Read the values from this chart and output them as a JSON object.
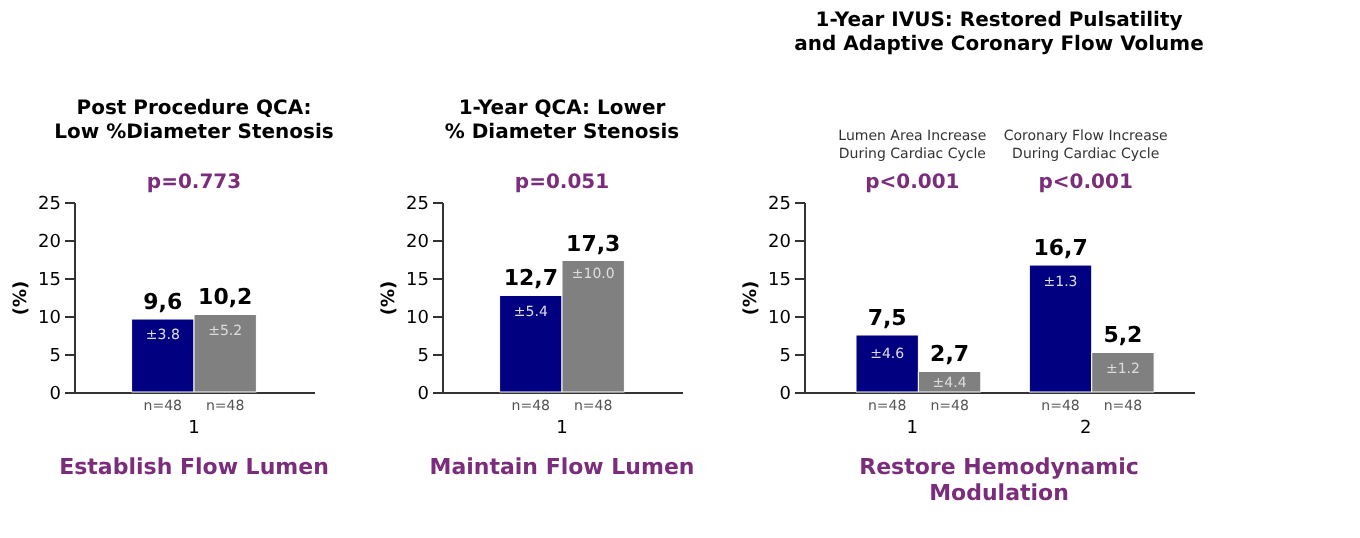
{
  "chart_data": [
    {
      "type": "bar",
      "title": "Post Procedure QCA: Low %Diameter Stenosis",
      "ylabel": "(%)",
      "categories": [
        "1"
      ],
      "ylim": [
        0,
        25
      ],
      "yticks": [
        0,
        5,
        10,
        15,
        20,
        25
      ],
      "grid": false,
      "legend": false,
      "series": [
        {
          "color": "#000080",
          "values": [
            9.6
          ],
          "value_labels": [
            "9,6"
          ]
        },
        {
          "color": "#808080",
          "values": [
            10.2
          ],
          "value_labels": [
            "10,2"
          ]
        }
      ],
      "annotations": [
        "Establish Flow Lumen",
        "p=0.773",
        {
          "text": "±3.8",
          "x": "1",
          "y": 7.5
        },
        {
          "text": "±5.2",
          "x": "1",
          "y": 8
        },
        {
          "text": "n=48",
          "x": "1",
          "y": 0
        },
        {
          "text": "n=48",
          "x": "1",
          "y": 0
        }
      ]
    },
    {
      "type": "bar",
      "title": "1-Year QCA: Lower % Diameter Stenosis",
      "ylabel": "(%)",
      "categories": [
        "1"
      ],
      "ylim": [
        0,
        25
      ],
      "yticks": [
        0,
        5,
        10,
        15,
        20,
        25
      ],
      "grid": false,
      "legend": false,
      "series": [
        {
          "color": "#000080",
          "values": [
            12.7
          ],
          "value_labels": [
            "12,7"
          ]
        },
        {
          "color": "#808080",
          "values": [
            17.3
          ],
          "value_labels": [
            "17,3"
          ]
        }
      ],
      "annotations": [
        "Maintain Flow Lumen",
        "p=0.051",
        {
          "text": "±5.4",
          "x": "1",
          "y": 10.5
        },
        {
          "text": "±10.0",
          "x": "1",
          "y": 15.5
        },
        {
          "text": "n=48",
          "x": "1",
          "y": 0
        },
        {
          "text": "n=48",
          "x": "1",
          "y": 0
        }
      ]
    },
    {
      "type": "bar",
      "title": "1-Year IVUS: Restored Pulsatility and Adaptive Coronary Flow Volume",
      "ylabel": "(%)",
      "categories": [
        "1",
        "2"
      ],
      "ylim": [
        0,
        25
      ],
      "yticks": [
        0,
        5,
        10,
        15,
        20,
        25
      ],
      "grid": false,
      "legend": false,
      "series": [
        {
          "color": "#000080",
          "values": [
            7.5,
            16.7
          ],
          "value_labels": [
            "7,5",
            "16,7"
          ]
        },
        {
          "color": "#808080",
          "values": [
            2.7,
            5.2
          ],
          "value_labels": [
            "2,7",
            "5,2"
          ]
        }
      ],
      "annotations": [
        "Restore Hemodynamic Modulation",
        "Lumen Area Increase During Cardiac Cycle",
        "p<0.001",
        "Coronary Flow Increase During Cardiac Cycle",
        "p<0.001",
        {
          "text": "±4.6",
          "x": "1",
          "y": 5
        },
        {
          "text": "±4.4",
          "x": "1",
          "y": 1.2
        },
        {
          "text": "n=48",
          "x": "1",
          "y": 0
        },
        {
          "text": "n=48",
          "x": "1",
          "y": 0
        },
        {
          "text": "±1.3",
          "x": "2",
          "y": 14.5
        },
        {
          "text": "±1.2",
          "x": "2",
          "y": 3
        },
        {
          "text": "n=48",
          "x": "2",
          "y": 0
        },
        {
          "text": "n=48",
          "x": "2",
          "y": 0
        }
      ]
    }
  ]
}
